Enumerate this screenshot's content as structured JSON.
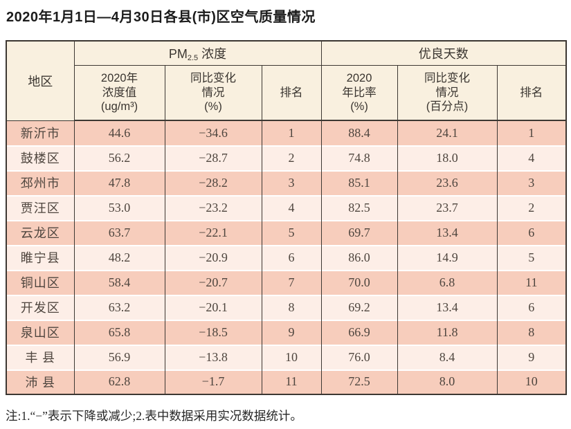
{
  "page": {
    "title": "2020年1月1日—4月30日各县(市)区空气质量情况",
    "footnote": "注:1.“−”表示下降或减少;2.表中数据采用实况数据统计。"
  },
  "colors": {
    "row_stripe_dark": "#f7cdbc",
    "row_stripe_light": "#fdeee7",
    "header_background": "#f9f0df",
    "table_border": "#3c3732",
    "body_text": "#4e453e"
  },
  "table": {
    "region_header": "地区",
    "pm25_group": {
      "prefix": "PM",
      "sub": "2.5",
      "suffix": " 浓度"
    },
    "good_days_group": "优良天数",
    "sub_headers": [
      "2020年\n浓度值\n(ug/m³)",
      "同比变化\n情况\n(%)",
      "排名",
      "2020\n年比率\n(%)",
      "同比变化\n情况\n(百分点)",
      "排名"
    ],
    "rows": [
      [
        "新沂市",
        "44.6",
        "−34.6",
        "1",
        "88.4",
        "24.1",
        "1"
      ],
      [
        "鼓楼区",
        "56.2",
        "−28.7",
        "2",
        "74.8",
        "18.0",
        "4"
      ],
      [
        "邳州市",
        "47.8",
        "−28.2",
        "3",
        "85.1",
        "23.6",
        "3"
      ],
      [
        "贾汪区",
        "53.0",
        "−23.2",
        "4",
        "82.5",
        "23.7",
        "2"
      ],
      [
        "云龙区",
        "63.7",
        "−22.1",
        "5",
        "69.7",
        "13.4",
        "6"
      ],
      [
        "睢宁县",
        "48.2",
        "−20.9",
        "6",
        "86.0",
        "14.9",
        "5"
      ],
      [
        "铜山区",
        "58.4",
        "−20.7",
        "7",
        "70.0",
        "6.8",
        "11"
      ],
      [
        "开发区",
        "63.2",
        "−20.1",
        "8",
        "69.2",
        "13.4",
        "6"
      ],
      [
        "泉山区",
        "65.8",
        "−18.5",
        "9",
        "66.9",
        "11.8",
        "8"
      ],
      [
        "丰 县",
        "56.9",
        "−13.8",
        "10",
        "76.0",
        "8.4",
        "9"
      ],
      [
        "沛 县",
        "62.8",
        "−1.7",
        "11",
        "72.5",
        "8.0",
        "10"
      ]
    ]
  }
}
